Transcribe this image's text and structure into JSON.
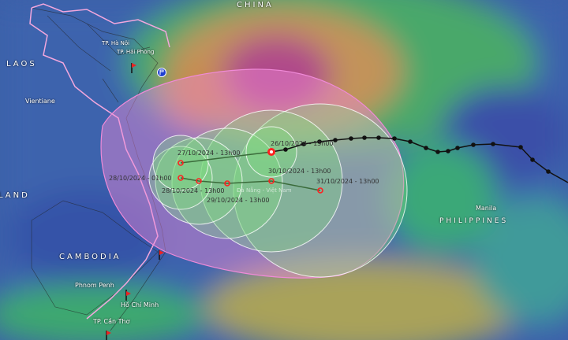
{
  "places": {
    "laos": "LAOS",
    "thailand_partial": "LAND",
    "cambodia": "CAMBODIA",
    "philippines": "PHILIPPINES",
    "china_partial": "CHINA",
    "vientiane": "Vientiane",
    "hanoi": "TP. Hà Nội",
    "haiphong": "TP. Hải Phòng",
    "phnom_penh": "Phnom Penh",
    "hcm": "Hồ Chí Minh",
    "cantho": "TP. Cần Thơ",
    "manila": "Manila"
  },
  "storm": {
    "forecast_points": [
      {
        "label": "26/10/2024 - 13h00",
        "current": true
      },
      {
        "label": "27/10/2024 - 13h00"
      },
      {
        "label": "28/10/2024 - 01h00"
      },
      {
        "label": "28/10/2024 - 13h00"
      },
      {
        "label": "29/10/2024 - 13h00"
      },
      {
        "label": "30/10/2024 - 13h00"
      },
      {
        "label": "31/10/2024 - 13h00"
      }
    ],
    "watermark": "Đà Nẵng - Việt Nam",
    "colors": {
      "forecast_point": "#ff2020",
      "past_track": "#111111",
      "danger_zone": "#f08ad8",
      "track_line": "#3a6b3a"
    }
  }
}
